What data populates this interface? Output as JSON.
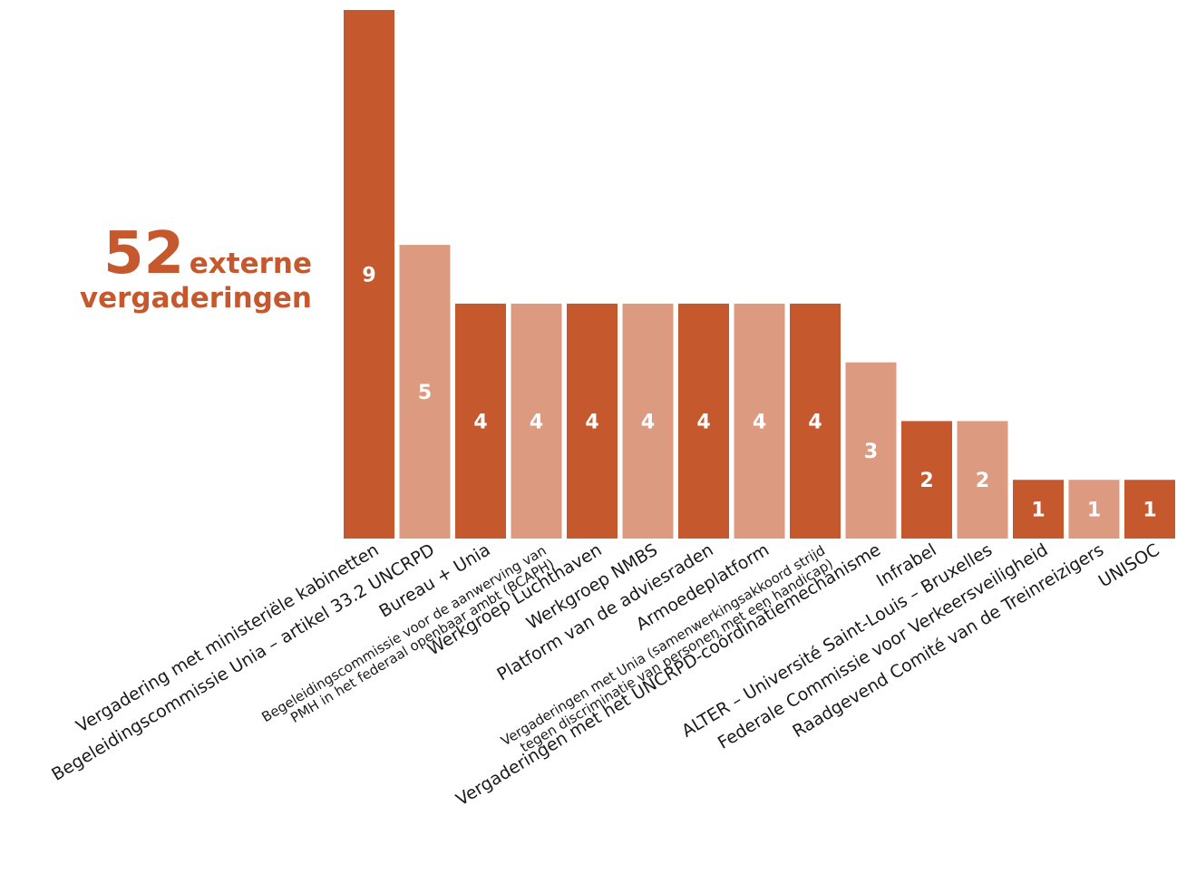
{
  "headline": {
    "number": "52",
    "word1": "externe",
    "word2": "vergaderingen"
  },
  "colors": {
    "dark": "#c5582d",
    "light": "#dc9a80",
    "text": "#1a1a1a"
  },
  "chart_data": {
    "type": "bar",
    "title": "",
    "xlabel": "",
    "ylabel": "",
    "ylim": [
      0,
      9
    ],
    "grid": false,
    "categories": [
      [
        "Vergadering met ministeriële kabinetten"
      ],
      [
        "Begeleidingscommissie Unia – artikel 33.2 UNCRPD"
      ],
      [
        "Bureau + Unia"
      ],
      [
        "Begeleidingscommissie voor de aanwerving van",
        "PMH in het federaal openbaar ambt (BCAPH)"
      ],
      [
        "Werkgroep Luchthaven"
      ],
      [
        "Werkgroep NMBS"
      ],
      [
        "Platform van de adviesraden"
      ],
      [
        "Armoedeplatform"
      ],
      [
        "Vergaderingen met Unia (samenwerkingsakkoord strijd",
        "tegen discriminatie van personen met een handicap)"
      ],
      [
        "Vergaderingen met het UNCRPD-coördinatiemechanisme"
      ],
      [
        "Infrabel"
      ],
      [
        "ALTER – Université Saint-Louis – Bruxelles"
      ],
      [
        "Federale Commissie voor Verkeersveiligheid"
      ],
      [
        "Raadgevend Comité van de Treinreizigers"
      ],
      [
        "UNISOC"
      ]
    ],
    "values": [
      9,
      5,
      4,
      4,
      4,
      4,
      4,
      4,
      4,
      3,
      2,
      2,
      1,
      1,
      1
    ],
    "value_labels": [
      "9",
      "5",
      "4",
      "4",
      "4",
      "4",
      "4",
      "4",
      "4",
      "3",
      "2",
      "2",
      "1",
      "1",
      "1"
    ],
    "bar_colors": [
      "dark",
      "light",
      "dark",
      "light",
      "dark",
      "light",
      "dark",
      "light",
      "dark",
      "light",
      "dark",
      "light",
      "dark",
      "light",
      "dark"
    ]
  }
}
